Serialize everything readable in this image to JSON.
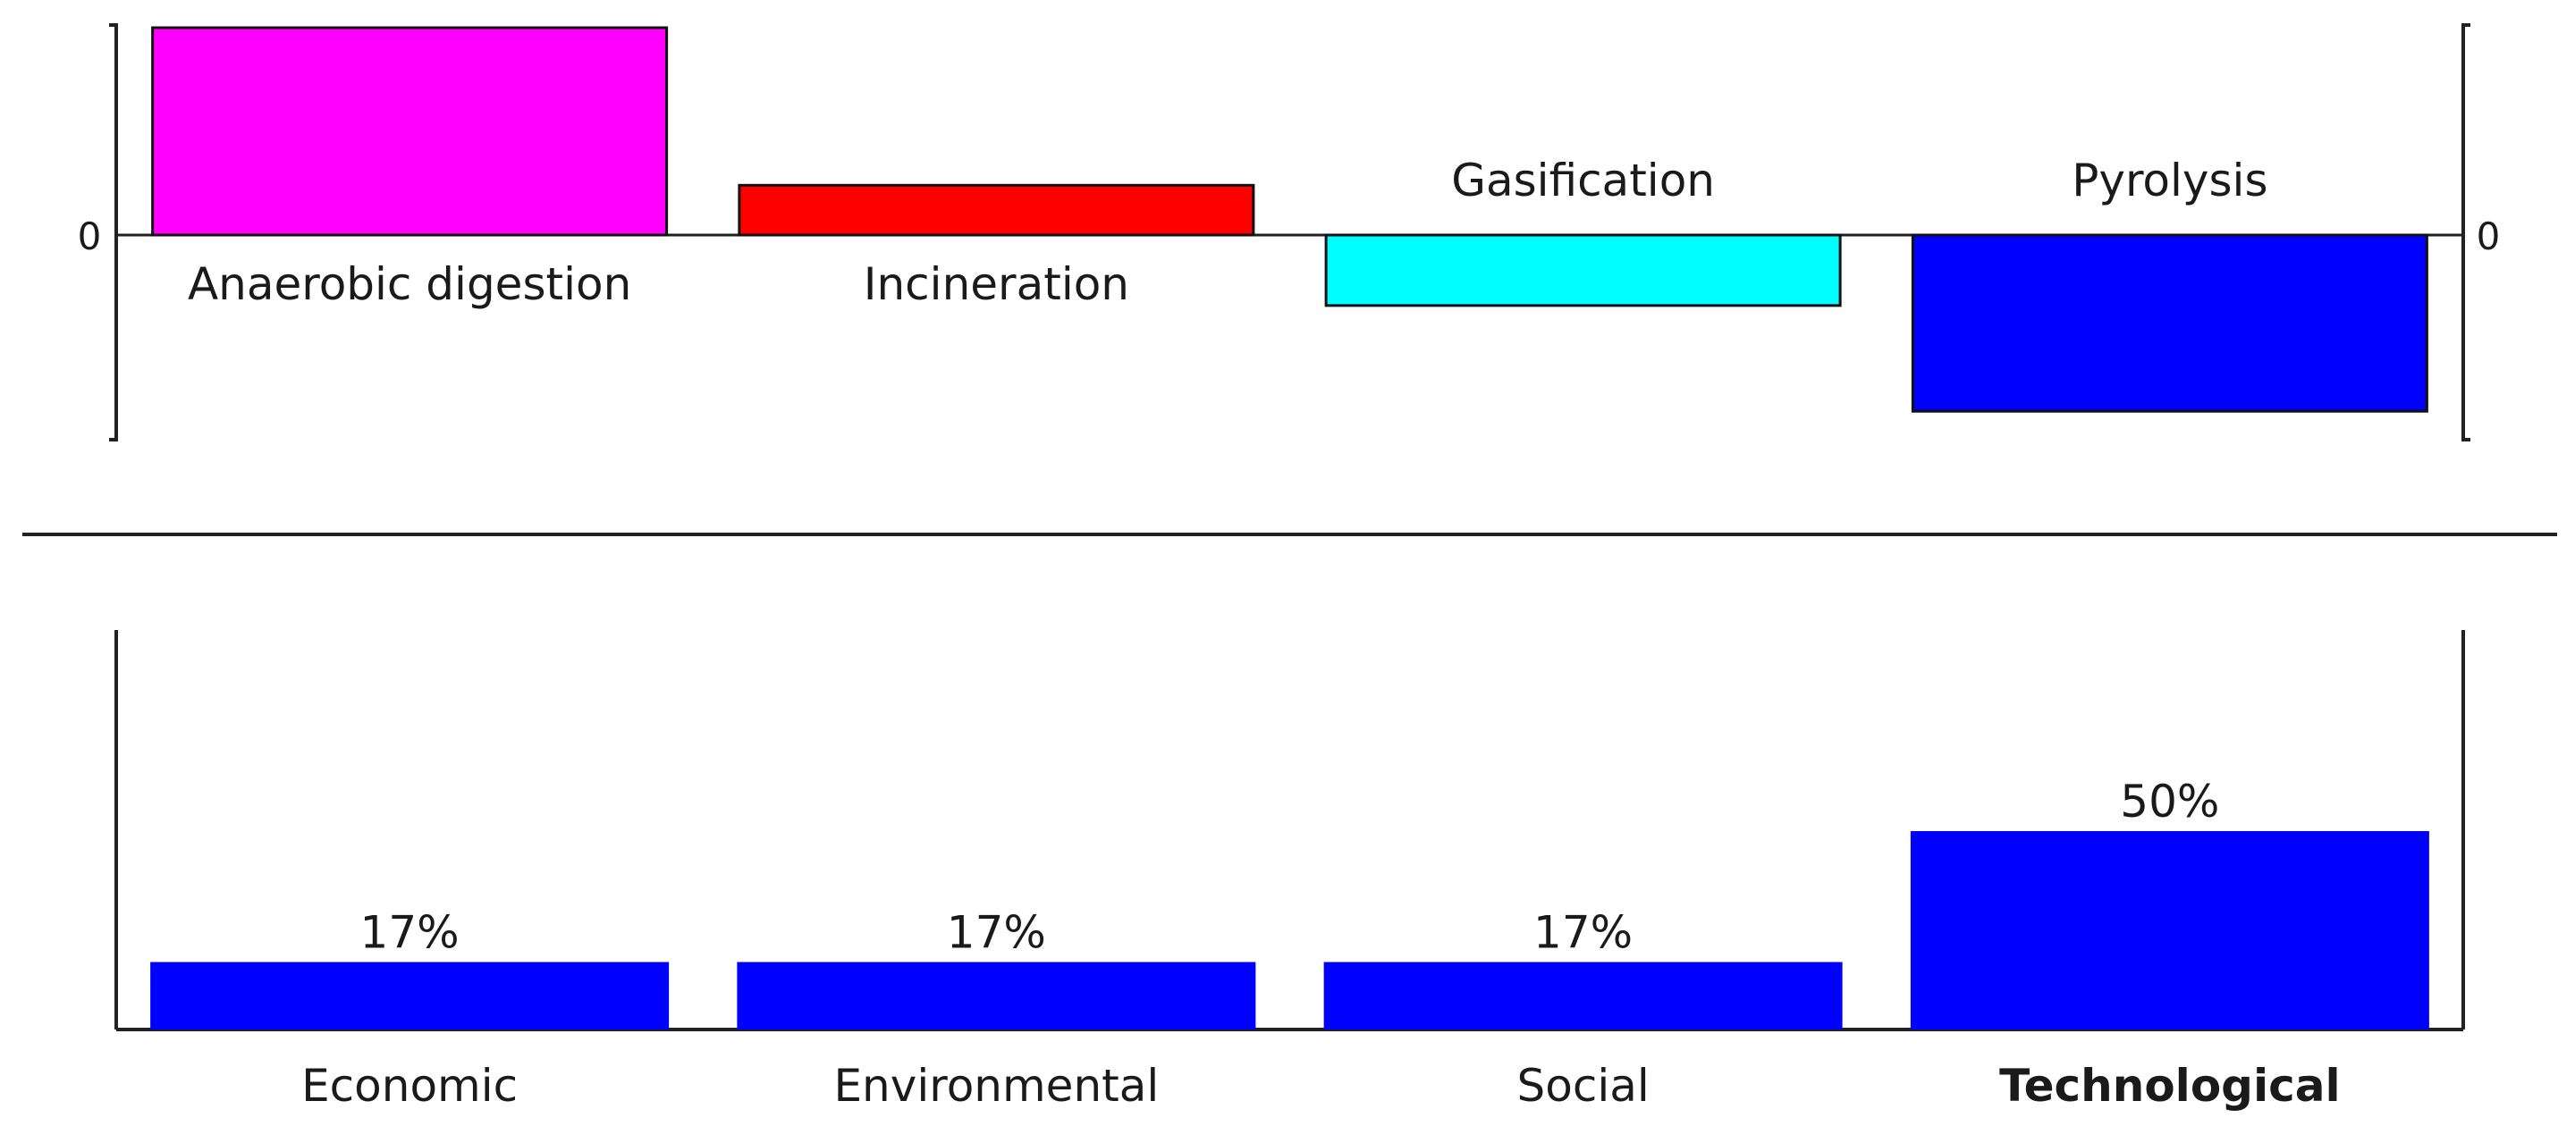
{
  "chart_data": [
    {
      "type": "bar",
      "categories": [
        "Anaerobic digestion",
        "Incineration",
        "Gasification",
        "Pyrolysis"
      ],
      "values": [
        1.0,
        0.24,
        -0.34,
        -0.85
      ],
      "colors": [
        "#ff00ff",
        "#ff0000",
        "#00ffff",
        "#0000ff"
      ],
      "zero_tick_label": "0",
      "ylim": [
        -1.0,
        1.0
      ],
      "title": "",
      "xlabel": "",
      "ylabel": "",
      "grid": false,
      "legend": "none"
    },
    {
      "type": "bar",
      "categories": [
        "Economic",
        "Environmental",
        "Social",
        "Technological"
      ],
      "values": [
        17,
        17,
        17,
        50
      ],
      "value_labels": [
        "17%",
        "17%",
        "17%",
        "50%"
      ],
      "highlighted_category": "Technological",
      "bar_color": "#0000ff",
      "ylim": [
        0,
        100
      ],
      "title": "",
      "xlabel": "",
      "ylabel": "",
      "grid": false,
      "legend": "none"
    }
  ]
}
